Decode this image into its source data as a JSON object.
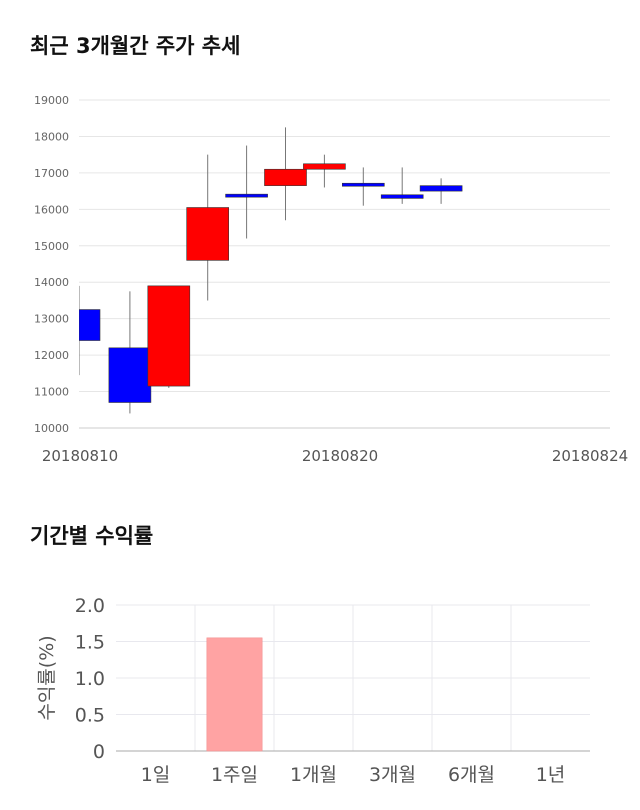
{
  "sections": {
    "candle_title": "최근 3개월간 주가 추세",
    "bar_title": "기간별 수익률"
  },
  "chart_data": [
    {
      "type": "candlestick",
      "title": "최근 3개월간 주가 추세",
      "ylim": [
        10000,
        19000
      ],
      "y_ticks": [
        10000,
        11000,
        12000,
        13000,
        14000,
        15000,
        16000,
        17000,
        18000,
        19000
      ],
      "x_tick_labels": [
        "20180810",
        "20180820",
        "20180824"
      ],
      "grid": true,
      "up_color": "#ff0000",
      "down_color": "#0000ff",
      "candles": [
        {
          "open": 13250,
          "high": 13900,
          "low": 11450,
          "close": 12400
        },
        {
          "open": 12200,
          "high": 13750,
          "low": 10400,
          "close": 10700
        },
        {
          "open": 11150,
          "high": 13900,
          "low": 11100,
          "close": 13900
        },
        {
          "open": 14600,
          "high": 17500,
          "low": 13500,
          "close": 16050
        },
        {
          "open": 16400,
          "high": 17750,
          "low": 15200,
          "close": 16350
        },
        {
          "open": 16650,
          "high": 18250,
          "low": 15700,
          "close": 17100
        },
        {
          "open": 17100,
          "high": 17500,
          "low": 16600,
          "close": 17250
        },
        {
          "open": 16700,
          "high": 17150,
          "low": 16100,
          "close": 16650
        },
        {
          "open": 16400,
          "high": 17150,
          "low": 16150,
          "close": 16300
        },
        {
          "open": 16650,
          "high": 16850,
          "low": 16150,
          "close": 16500
        }
      ]
    },
    {
      "type": "bar",
      "title": "기간별 수익률",
      "categories": [
        "1일",
        "1주일",
        "1개월",
        "3개월",
        "6개월",
        "1년"
      ],
      "values": [
        0,
        1.55,
        0,
        0,
        0,
        0
      ],
      "ylabel": "수익률(%)",
      "ylim": [
        0,
        2.0
      ],
      "y_ticks": [
        "0",
        "0.5",
        "1.0",
        "1.5",
        "2.0"
      ],
      "bar_color": "#ffa3a3",
      "grid": true
    }
  ]
}
